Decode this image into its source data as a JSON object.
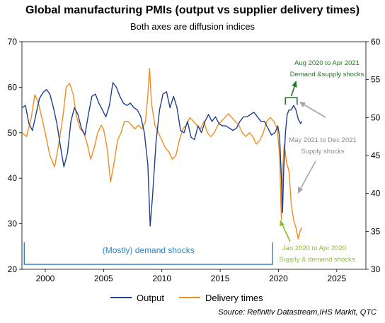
{
  "chart_data": {
    "type": "line",
    "title": "Global manufacturing PMIs (output vs supplier delivery times)",
    "subtitle": "Both axes are diffusion indices",
    "source": "Source: Refinitiv Datastream,IHS Markit, QTC",
    "x_ticks": [
      2000,
      2005,
      2010,
      2015,
      2020,
      2025
    ],
    "xlim": [
      1998,
      2027.5
    ],
    "y_left": {
      "ticks": [
        20,
        30,
        40,
        50,
        60,
        70
      ],
      "lim": [
        20,
        70
      ]
    },
    "y_right": {
      "ticks": [
        30,
        35,
        40,
        45,
        50,
        55,
        60
      ],
      "lim": [
        30,
        60
      ]
    },
    "grid": false,
    "legend_position": "bottom",
    "series": [
      {
        "name": "Output",
        "axis": "left",
        "color": "#1f3f8f",
        "points": [
          [
            1998.0,
            55.5
          ],
          [
            1998.3,
            56.0
          ],
          [
            1998.6,
            52.0
          ],
          [
            1998.9,
            50.5
          ],
          [
            1999.2,
            54.0
          ],
          [
            1999.5,
            57.5
          ],
          [
            1999.8,
            58.8
          ],
          [
            2000.1,
            59.5
          ],
          [
            2000.4,
            58.5
          ],
          [
            2000.7,
            55.5
          ],
          [
            2001.0,
            52.0
          ],
          [
            2001.3,
            47.0
          ],
          [
            2001.6,
            42.5
          ],
          [
            2001.9,
            45.5
          ],
          [
            2002.2,
            52.5
          ],
          [
            2002.5,
            55.5
          ],
          [
            2002.8,
            54.0
          ],
          [
            2003.1,
            51.0
          ],
          [
            2003.4,
            49.5
          ],
          [
            2003.7,
            54.0
          ],
          [
            2004.0,
            58.0
          ],
          [
            2004.3,
            58.5
          ],
          [
            2004.6,
            56.5
          ],
          [
            2004.9,
            55.0
          ],
          [
            2005.2,
            53.5
          ],
          [
            2005.5,
            56.0
          ],
          [
            2005.8,
            61.0
          ],
          [
            2006.1,
            60.0
          ],
          [
            2006.4,
            58.0
          ],
          [
            2006.7,
            56.5
          ],
          [
            2007.0,
            56.0
          ],
          [
            2007.3,
            56.5
          ],
          [
            2007.6,
            55.5
          ],
          [
            2007.9,
            55.0
          ],
          [
            2008.2,
            53.5
          ],
          [
            2008.5,
            50.0
          ],
          [
            2008.8,
            43.0
          ],
          [
            2009.0,
            29.5
          ],
          [
            2009.2,
            36.0
          ],
          [
            2009.5,
            48.0
          ],
          [
            2009.8,
            55.0
          ],
          [
            2010.1,
            58.5
          ],
          [
            2010.4,
            59.0
          ],
          [
            2010.7,
            55.5
          ],
          [
            2011.0,
            58.0
          ],
          [
            2011.3,
            55.5
          ],
          [
            2011.6,
            50.5
          ],
          [
            2011.9,
            50.0
          ],
          [
            2012.2,
            52.5
          ],
          [
            2012.5,
            49.0
          ],
          [
            2012.8,
            48.5
          ],
          [
            2013.1,
            51.5
          ],
          [
            2013.4,
            50.0
          ],
          [
            2013.7,
            52.5
          ],
          [
            2014.0,
            54.0
          ],
          [
            2014.3,
            52.5
          ],
          [
            2014.6,
            53.5
          ],
          [
            2014.9,
            52.0
          ],
          [
            2015.2,
            51.5
          ],
          [
            2015.5,
            51.5
          ],
          [
            2015.8,
            51.0
          ],
          [
            2016.1,
            50.5
          ],
          [
            2016.4,
            51.0
          ],
          [
            2016.7,
            52.5
          ],
          [
            2017.0,
            53.5
          ],
          [
            2017.3,
            53.5
          ],
          [
            2017.6,
            54.0
          ],
          [
            2017.9,
            54.5
          ],
          [
            2018.2,
            53.5
          ],
          [
            2018.5,
            52.5
          ],
          [
            2018.8,
            52.5
          ],
          [
            2019.1,
            51.0
          ],
          [
            2019.4,
            49.5
          ],
          [
            2019.7,
            50.0
          ],
          [
            2019.95,
            51.5
          ],
          [
            2020.1,
            49.0
          ],
          [
            2020.25,
            40.0
          ],
          [
            2020.35,
            32.5
          ],
          [
            2020.45,
            42.0
          ],
          [
            2020.6,
            50.0
          ],
          [
            2020.75,
            54.0
          ],
          [
            2020.9,
            55.0
          ],
          [
            2021.1,
            55.0
          ],
          [
            2021.3,
            56.0
          ],
          [
            2021.5,
            55.0
          ],
          [
            2021.7,
            53.0
          ],
          [
            2021.9,
            52.0
          ],
          [
            2022.0,
            52.5
          ]
        ]
      },
      {
        "name": "Delivery times",
        "axis": "right",
        "color": "#f28c1e",
        "points": [
          [
            1998.0,
            48.0
          ],
          [
            1998.4,
            47.5
          ],
          [
            1998.8,
            50.0
          ],
          [
            1999.1,
            53.0
          ],
          [
            1999.4,
            52.0
          ],
          [
            1999.7,
            50.0
          ],
          [
            2000.0,
            48.0
          ],
          [
            2000.4,
            45.0
          ],
          [
            2000.8,
            43.5
          ],
          [
            2001.1,
            46.0
          ],
          [
            2001.5,
            50.0
          ],
          [
            2001.8,
            54.0
          ],
          [
            2002.1,
            54.5
          ],
          [
            2002.4,
            53.0
          ],
          [
            2002.7,
            50.0
          ],
          [
            2003.0,
            48.5
          ],
          [
            2003.3,
            48.0
          ],
          [
            2003.6,
            46.5
          ],
          [
            2003.9,
            44.5
          ],
          [
            2004.2,
            46.0
          ],
          [
            2004.5,
            48.0
          ],
          [
            2004.8,
            49.0
          ],
          [
            2005.0,
            48.5
          ],
          [
            2005.3,
            46.0
          ],
          [
            2005.6,
            41.5
          ],
          [
            2005.9,
            44.0
          ],
          [
            2006.2,
            47.0
          ],
          [
            2006.5,
            48.0
          ],
          [
            2006.8,
            49.5
          ],
          [
            2007.1,
            49.5
          ],
          [
            2007.4,
            49.0
          ],
          [
            2007.7,
            48.5
          ],
          [
            2008.0,
            49.0
          ],
          [
            2008.3,
            48.5
          ],
          [
            2008.6,
            49.5
          ],
          [
            2008.8,
            53.0
          ],
          [
            2008.95,
            56.5
          ],
          [
            2009.1,
            52.0
          ],
          [
            2009.4,
            49.0
          ],
          [
            2009.7,
            48.0
          ],
          [
            2010.0,
            47.0
          ],
          [
            2010.3,
            46.0
          ],
          [
            2010.6,
            45.5
          ],
          [
            2010.9,
            44.5
          ],
          [
            2011.2,
            45.0
          ],
          [
            2011.5,
            47.0
          ],
          [
            2011.8,
            48.5
          ],
          [
            2012.1,
            49.0
          ],
          [
            2012.4,
            50.0
          ],
          [
            2012.7,
            49.5
          ],
          [
            2013.0,
            49.0
          ],
          [
            2013.3,
            48.5
          ],
          [
            2013.6,
            49.5
          ],
          [
            2013.9,
            48.0
          ],
          [
            2014.2,
            47.5
          ],
          [
            2014.5,
            48.0
          ],
          [
            2014.8,
            49.0
          ],
          [
            2015.1,
            49.5
          ],
          [
            2015.4,
            50.0
          ],
          [
            2015.7,
            50.5
          ],
          [
            2016.0,
            50.0
          ],
          [
            2016.3,
            49.5
          ],
          [
            2016.6,
            49.0
          ],
          [
            2016.9,
            48.0
          ],
          [
            2017.2,
            47.5
          ],
          [
            2017.5,
            48.0
          ],
          [
            2017.8,
            47.5
          ],
          [
            2018.1,
            46.5
          ],
          [
            2018.4,
            47.0
          ],
          [
            2018.7,
            48.0
          ],
          [
            2019.0,
            49.5
          ],
          [
            2019.3,
            50.0
          ],
          [
            2019.6,
            49.5
          ],
          [
            2019.9,
            48.5
          ],
          [
            2020.1,
            45.0
          ],
          [
            2020.25,
            36.5
          ],
          [
            2020.35,
            43.0
          ],
          [
            2020.5,
            46.5
          ],
          [
            2020.7,
            44.0
          ],
          [
            2020.9,
            43.0
          ],
          [
            2021.1,
            38.5
          ],
          [
            2021.3,
            36.5
          ],
          [
            2021.5,
            35.5
          ],
          [
            2021.7,
            34.0
          ],
          [
            2021.85,
            35.0
          ],
          [
            2022.0,
            35.5
          ]
        ]
      }
    ],
    "annotations": {
      "demand_shocks": "(Mostly) demand shocks",
      "aug_2020": {
        "line1": "Aug 2020 to Apr 2021",
        "line2": "Demand &supply shocks"
      },
      "may_2021": {
        "line1": "May 2021 to Dec 2021",
        "line2": "Supply shocks"
      },
      "jan_2020": {
        "line1": "Jan 2020 to Apr 2020",
        "line2": "Supply & demand shocks"
      }
    },
    "annotation_colors": {
      "demand": "#2e86c1",
      "aug": "#1e7a1e",
      "may": "#a6a6a6",
      "jan": "#8cbf26"
    }
  }
}
